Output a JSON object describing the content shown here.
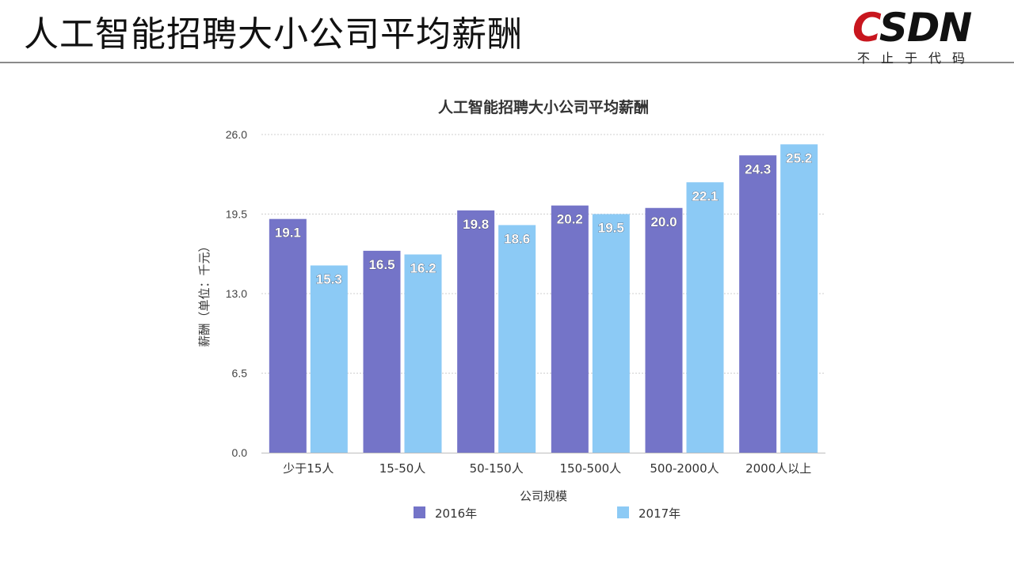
{
  "slide": {
    "title": "人工智能招聘大小公司平均薪酬",
    "logo": {
      "letter_c": "C",
      "letters_rest": "SDN",
      "slogan": "不止于代码",
      "brand_color": "#c8161e"
    }
  },
  "chart_data": {
    "type": "bar",
    "title": "人工智能招聘大小公司平均薪酬",
    "xlabel": "公司规模",
    "ylabel": "薪酬（单位：千元）",
    "categories": [
      "少于15人",
      "15-50人",
      "50-150人",
      "150-500人",
      "500-2000人",
      "2000人以上"
    ],
    "series": [
      {
        "name": "2016年",
        "color": "#7474c8",
        "values": [
          19.1,
          16.5,
          19.8,
          20.2,
          20.0,
          24.3
        ]
      },
      {
        "name": "2017年",
        "color": "#8ccaf5",
        "values": [
          15.3,
          16.2,
          18.6,
          19.5,
          22.1,
          25.2
        ]
      }
    ],
    "ylim": [
      0,
      26
    ],
    "yticks": [
      "0.0",
      "6.5",
      "13.0",
      "19.5",
      "26.0"
    ],
    "ytick_values": [
      0,
      6.5,
      13,
      19.5,
      26
    ],
    "grid": true,
    "legend_position": "bottom"
  }
}
